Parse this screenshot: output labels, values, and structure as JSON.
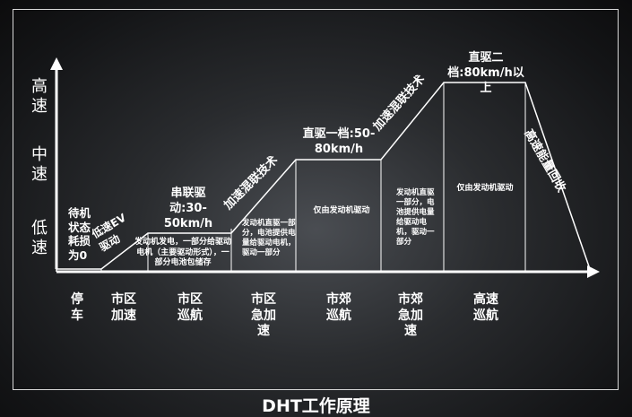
{
  "title": "DHT工作原理",
  "axis": {
    "high": "高速",
    "mid": "中速",
    "low": "低速"
  },
  "stages": [
    {
      "state": "待机状态耗损为0",
      "phase": "停车"
    },
    {
      "mode": "低速EV驱动",
      "phase": "市区加速"
    },
    {
      "heading": "串联驱动:30-50km/h",
      "detail": "发动机发电，一部分给驱动电机（主要驱动形式），一部分电池包储存",
      "phase": "市区巡航"
    },
    {
      "mode": "加速混联技术",
      "detail": "发动机直驱一部分，电池提供电量给驱动电机，驱动一部分",
      "phase": "市区急加速"
    },
    {
      "heading": "直驱一档:50-80km/h",
      "detail": "仅由发动机驱动",
      "phase": "市郊巡航"
    },
    {
      "mode": "加速混联技术",
      "detail": "发动机直驱一部分，电池提供电量给驱动电机，驱动一部分",
      "phase": "市郊急加速"
    },
    {
      "heading": "直驱二档:80km/h以上",
      "detail": "仅由发动机驱动",
      "phase": "高速巡航"
    },
    {
      "mode": "高速能量回收"
    }
  ]
}
